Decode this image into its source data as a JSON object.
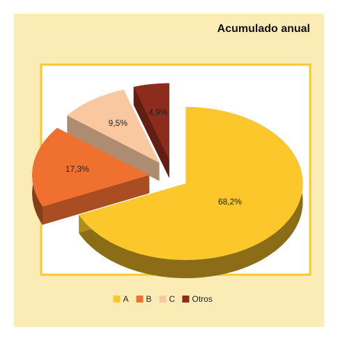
{
  "chart_data": {
    "type": "pie",
    "title": "Acumulado anual",
    "categories": [
      "A",
      "B",
      "C",
      "Otros"
    ],
    "values": [
      68.2,
      17.3,
      9.5,
      4.9
    ],
    "value_labels": [
      "68,2%",
      "17,3%",
      "9,5%",
      "4,9%"
    ],
    "colors": [
      "#fcc72b",
      "#f07030",
      "#f9c8a0",
      "#8b2c1c"
    ],
    "legend": "bottom"
  }
}
